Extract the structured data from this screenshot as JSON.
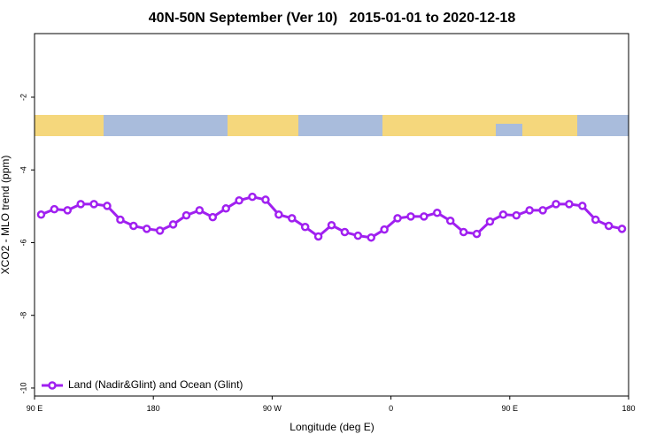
{
  "chart_data": {
    "type": "line",
    "title": "40N-50N September (Ver 10)   2015-01-01 to 2020-12-18",
    "x_label": "Longitude (deg E)",
    "y_label": "XCO2 - MLO trend (ppm)",
    "x": [
      95,
      105,
      115,
      125,
      135,
      145,
      155,
      165,
      175,
      185,
      195,
      205,
      215,
      225,
      235,
      245,
      255,
      265,
      275,
      285,
      295,
      305,
      315,
      325,
      335,
      345,
      355,
      365,
      375,
      385,
      395,
      405,
      415,
      425,
      435,
      445,
      455,
      465,
      475,
      485,
      495,
      505,
      515,
      525,
      535
    ],
    "series": [
      {
        "name": "Land (Nadir&Glint) and Ocean (Glint)",
        "color": "#a020f0",
        "values": [
          -5.23,
          -5.08,
          -5.11,
          -4.94,
          -4.94,
          -4.99,
          -5.37,
          -5.54,
          -5.62,
          -5.67,
          -5.5,
          -5.25,
          -5.11,
          -5.3,
          -5.06,
          -4.84,
          -4.74,
          -4.82,
          -5.23,
          -5.33,
          -5.57,
          -5.83,
          -5.52,
          -5.71,
          -5.81,
          -5.86,
          -5.64,
          -5.33,
          -5.28,
          -5.28,
          -5.18,
          -5.4,
          -5.71,
          -5.76,
          -5.42,
          -5.23,
          -5.25,
          -5.11,
          -5.11,
          -4.94,
          -4.94,
          -4.99,
          -5.37,
          -5.54,
          -5.62
        ]
      }
    ],
    "xlim": [
      90,
      540
    ],
    "xticks": [
      {
        "value": 90,
        "label": "90 E"
      },
      180,
      {
        "value": 270,
        "label": "90 W"
      },
      {
        "value": 360,
        "label": "0"
      },
      {
        "value": 450,
        "label": "90 E"
      },
      {
        "value": 540,
        "label": "180"
      }
    ],
    "ylim": [
      -10.22,
      -0.25
    ],
    "yticks": [
      -2,
      -4,
      -6,
      -8,
      -10
    ],
    "grid": false,
    "legend": "bottom-left"
  }
}
